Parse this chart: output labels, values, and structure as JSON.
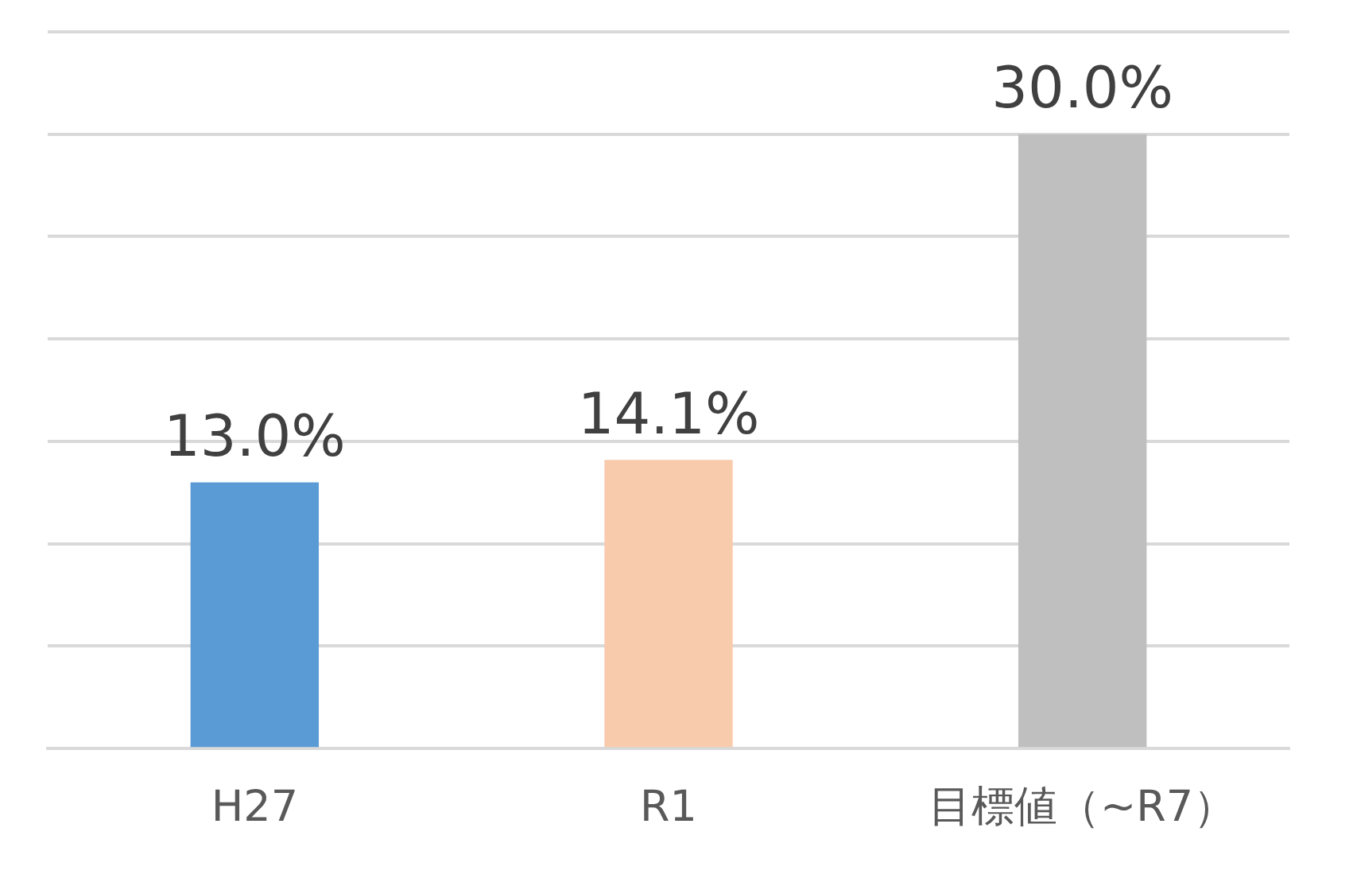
{
  "chart_data": {
    "type": "bar",
    "categories": [
      "H27",
      "R1",
      "目標値（~R7）"
    ],
    "values": [
      13.0,
      14.1,
      30.0
    ],
    "colors": [
      "#5b9bd5",
      "#f8cbad",
      "#bfbfbf"
    ],
    "value_labels": [
      "13.0%",
      "14.1%",
      "30.0%"
    ],
    "ylim": [
      0,
      35
    ],
    "yticks": [
      {
        "value": 0,
        "label": null
      },
      {
        "value": 5,
        "label": null
      },
      {
        "value": 10,
        "label": null
      },
      {
        "value": 15,
        "label": null
      },
      {
        "value": 20,
        "label": null
      },
      {
        "value": 25,
        "label": null
      },
      {
        "value": 30,
        "label": null
      },
      {
        "value": 35,
        "label": null
      }
    ],
    "grid": "y",
    "legend": false,
    "tick_labels": "x"
  }
}
